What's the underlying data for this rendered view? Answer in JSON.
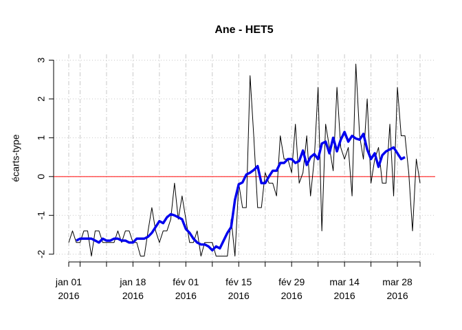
{
  "chart_data": {
    "type": "line",
    "title": "Ane - HET5",
    "y_label": "écarts-type",
    "x": [
      "2016-01-01",
      "2016-01-02",
      "2016-01-03",
      "2016-01-04",
      "2016-01-05",
      "2016-01-06",
      "2016-01-07",
      "2016-01-08",
      "2016-01-09",
      "2016-01-10",
      "2016-01-11",
      "2016-01-12",
      "2016-01-13",
      "2016-01-14",
      "2016-01-15",
      "2016-01-16",
      "2016-01-17",
      "2016-01-18",
      "2016-01-19",
      "2016-01-20",
      "2016-01-21",
      "2016-01-22",
      "2016-01-23",
      "2016-01-24",
      "2016-01-25",
      "2016-01-26",
      "2016-01-27",
      "2016-01-28",
      "2016-01-29",
      "2016-01-30",
      "2016-01-31",
      "2016-02-01",
      "2016-02-02",
      "2016-02-03",
      "2016-02-04",
      "2016-02-05",
      "2016-02-06",
      "2016-02-07",
      "2016-02-08",
      "2016-02-09",
      "2016-02-10",
      "2016-02-11",
      "2016-02-12",
      "2016-02-13",
      "2016-02-14",
      "2016-02-15",
      "2016-02-16",
      "2016-02-17",
      "2016-02-18",
      "2016-02-19",
      "2016-02-20",
      "2016-02-21",
      "2016-02-22",
      "2016-02-23",
      "2016-02-24",
      "2016-02-25",
      "2016-02-26",
      "2016-02-27",
      "2016-02-28",
      "2016-02-29",
      "2016-03-01",
      "2016-03-02",
      "2016-03-03",
      "2016-03-04",
      "2016-03-05",
      "2016-03-06",
      "2016-03-07",
      "2016-03-08",
      "2016-03-09",
      "2016-03-10",
      "2016-03-11",
      "2016-03-12",
      "2016-03-13",
      "2016-03-14",
      "2016-03-15",
      "2016-03-16",
      "2016-03-17",
      "2016-03-18",
      "2016-03-19",
      "2016-03-20",
      "2016-03-21",
      "2016-03-22",
      "2016-03-23",
      "2016-03-24",
      "2016-03-25",
      "2016-03-26",
      "2016-03-27",
      "2016-03-28",
      "2016-03-29",
      "2016-03-30",
      "2016-03-31",
      "2016-04-01",
      "2016-04-02",
      "2016-04-03"
    ],
    "series": [
      {
        "color": "#000000",
        "width": 1,
        "values": [
          -1.7,
          -1.4,
          -1.7,
          -1.7,
          -1.4,
          -1.4,
          -2.05,
          -1.4,
          -1.4,
          -1.7,
          -1.7,
          -1.7,
          -1.7,
          -1.4,
          -1.7,
          -1.4,
          -1.4,
          -1.7,
          -1.7,
          -2.05,
          -2.05,
          -1.4,
          -0.8,
          -1.4,
          -1.7,
          -1.4,
          -1.4,
          -1.1,
          -0.17,
          -1.1,
          -0.5,
          -1.1,
          -1.7,
          -1.7,
          -1.4,
          -2.05,
          -1.7,
          -1.7,
          -1.7,
          -2.05,
          -2.05,
          -2.05,
          -2.05,
          -1.1,
          -2.05,
          -0.17,
          -0.8,
          -0.8,
          2.6,
          1.0,
          -0.8,
          -0.8,
          0.1,
          -0.17,
          -0.17,
          -0.5,
          1.05,
          0.45,
          0.45,
          0.1,
          1.35,
          -0.17,
          0.1,
          1.05,
          -0.5,
          0.45,
          2.3,
          -1.4,
          1.35,
          0.75,
          0.15,
          2.3,
          0.75,
          0.45,
          0.75,
          -0.5,
          2.9,
          1.05,
          0.45,
          2.0,
          -0.17,
          0.45,
          0.75,
          -0.17,
          -0.17,
          1.35,
          -0.5,
          2.3,
          1.05,
          1.05,
          0.1,
          -1.4,
          0.45,
          -0.17
        ]
      },
      {
        "color": "#0000ee",
        "width": 3.5,
        "values": [
          null,
          null,
          -1.65,
          -1.6,
          -1.6,
          -1.6,
          -1.6,
          -1.65,
          -1.7,
          -1.6,
          -1.65,
          -1.65,
          -1.6,
          -1.6,
          -1.65,
          -1.65,
          -1.7,
          -1.7,
          -1.6,
          -1.6,
          -1.6,
          -1.55,
          -1.45,
          -1.3,
          -1.15,
          -1.2,
          -1.05,
          -0.97,
          -1.0,
          -1.05,
          -1.1,
          -1.35,
          -1.45,
          -1.6,
          -1.7,
          -1.75,
          -1.75,
          -1.8,
          -1.9,
          -1.8,
          -1.85,
          -1.65,
          -1.45,
          -1.3,
          -0.6,
          -0.2,
          -0.15,
          0.05,
          0.1,
          0.17,
          0.27,
          -0.17,
          -0.17,
          0.0,
          0.15,
          0.15,
          0.35,
          0.35,
          0.45,
          0.45,
          0.35,
          0.4,
          0.67,
          0.3,
          0.5,
          0.58,
          0.45,
          0.85,
          0.9,
          0.6,
          1.0,
          0.65,
          0.95,
          1.15,
          0.9,
          1.05,
          0.98,
          0.95,
          1.1,
          0.7,
          0.45,
          0.6,
          0.25,
          0.55,
          0.65,
          0.7,
          0.75,
          0.6,
          0.45,
          0.5,
          null,
          null,
          null,
          null
        ]
      }
    ],
    "hline": 0,
    "hline_color": "#ff0000",
    "xlim": [
      "2015-12-28",
      "2016-04-07"
    ],
    "xticks": [
      {
        "value": "2016-01-01",
        "label": "jan 01\n2016"
      },
      {
        "value": "2016-01-18",
        "label": "jan 18\n2016"
      },
      {
        "value": "2016-02-01",
        "label": "fév 01\n2016"
      },
      {
        "value": "2016-02-15",
        "label": "fév 15\n2016"
      },
      {
        "value": "2016-02-29",
        "label": "fév 29\n2016"
      },
      {
        "value": "2016-03-14",
        "label": "mar 14\n2016"
      },
      {
        "value": "2016-03-28",
        "label": "mar 28\n2016"
      }
    ],
    "xminor_ticks": [
      "2016-01-04",
      "2016-01-11",
      "2016-01-25",
      "2016-02-08",
      "2016-02-22",
      "2016-03-07",
      "2016-03-21",
      "2016-04-03"
    ],
    "ylim": [
      -2.2,
      3.15
    ],
    "yticks": [
      -2,
      -1,
      0,
      1,
      2,
      3
    ],
    "grid": true
  }
}
